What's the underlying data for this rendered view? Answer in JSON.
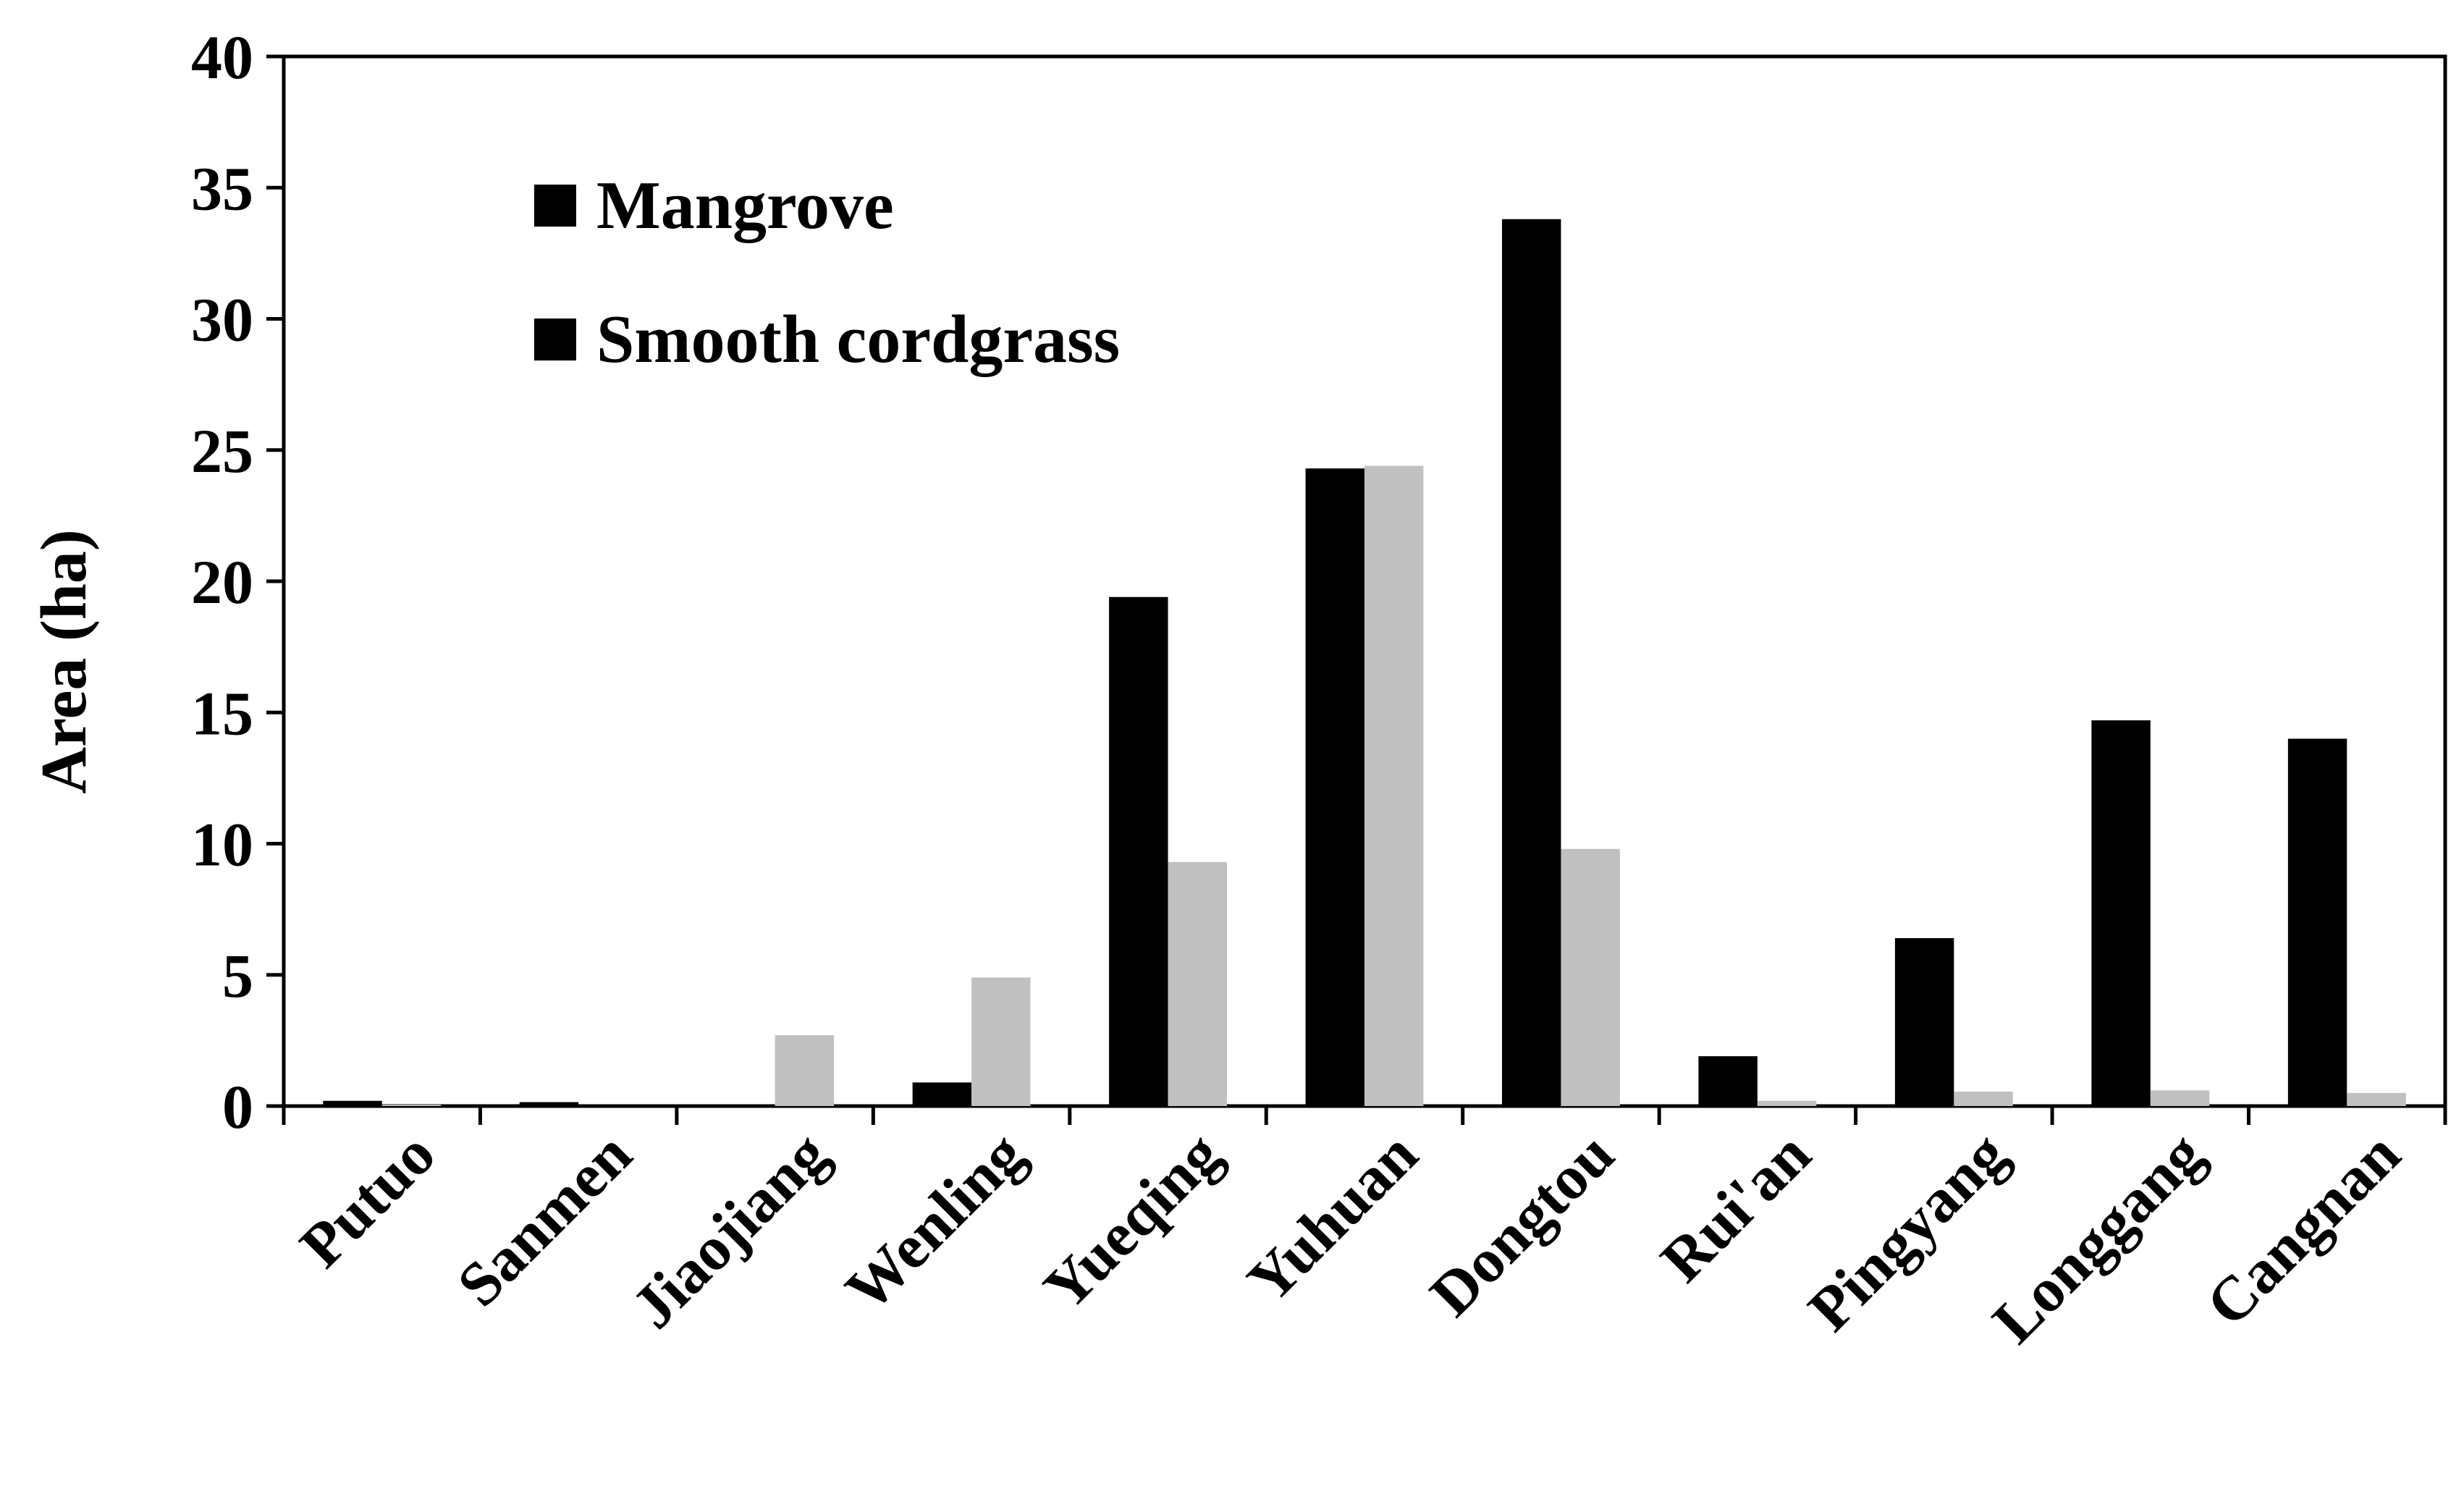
{
  "chart_data": {
    "type": "bar",
    "title": "",
    "xlabel": "",
    "ylabel": "Area (ha)",
    "ylim": [
      0,
      40
    ],
    "yticks": [
      0,
      5,
      10,
      15,
      20,
      25,
      30,
      35,
      40
    ],
    "grid": false,
    "legend_position": "top-left",
    "categories": [
      "Putuo",
      "Sanmen",
      "Jiaojiang",
      "Wenling",
      "Yueqing",
      "Yuhuan",
      "Dongtou",
      "Rui'an",
      "Pingyang",
      "Longgang",
      "Cangnan"
    ],
    "series": [
      {
        "name": "Mangrove",
        "color": "#000000",
        "values": [
          0.2,
          0.15,
          0.05,
          0.9,
          19.4,
          24.3,
          33.8,
          1.9,
          6.4,
          14.7,
          14.0
        ]
      },
      {
        "name": "Smooth cordgrass",
        "color": "#c0c0c0",
        "values": [
          0.05,
          0.0,
          2.7,
          4.9,
          9.3,
          24.4,
          9.8,
          0.2,
          0.55,
          0.6,
          0.5
        ]
      }
    ]
  }
}
